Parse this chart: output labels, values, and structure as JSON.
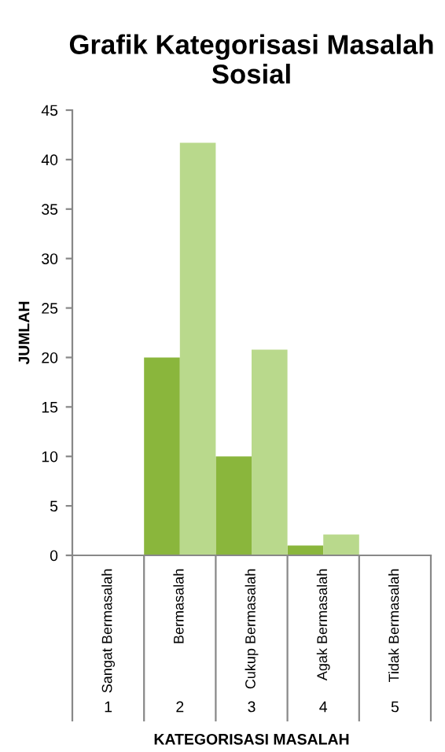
{
  "chart_data": {
    "type": "bar",
    "title": "Grafik Kategorisasi Masalah Sosial",
    "xlabel": "KATEGORISASI MASALAH",
    "ylabel": "JUMLAH",
    "categories": [
      "Sangat Bermasalah",
      "Bermasalah",
      "Cukup Bermasalah",
      "Agak Bermasalah",
      "Tidak Bermasalah"
    ],
    "annotations": [
      "1",
      "2",
      "3",
      "4",
      "5"
    ],
    "series": [
      {
        "color": "#8ab63c",
        "values": [
          0,
          20,
          10,
          1,
          0
        ]
      },
      {
        "color": "#b9d98c",
        "values": [
          0,
          41.7,
          20.8,
          2.1,
          0
        ]
      }
    ],
    "ylim": [
      0,
      45
    ],
    "yticks": [
      0,
      5,
      10,
      15,
      20,
      25,
      30,
      35,
      40,
      45
    ],
    "grid": false,
    "legend": false
  }
}
